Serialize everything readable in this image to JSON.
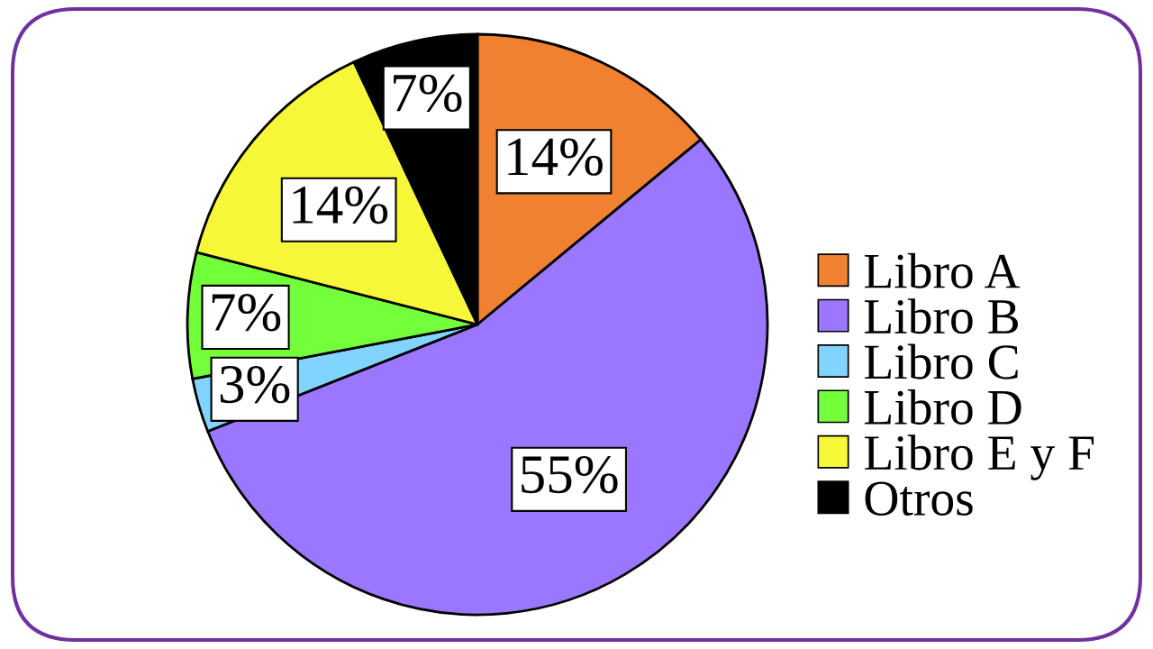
{
  "chart_data": {
    "type": "pie",
    "categories": [
      "Libro A",
      "Libro B",
      "Libro C",
      "Libro D",
      "Libro E y F",
      "Otros"
    ],
    "values": [
      14,
      55,
      3,
      7,
      14,
      7
    ],
    "colors": [
      "#ef8130",
      "#9b77ff",
      "#80d4ff",
      "#73ff3a",
      "#f7f73a",
      "#000000"
    ],
    "value_labels": [
      "14%",
      "55%",
      "3%",
      "7%",
      "14%",
      "7%"
    ],
    "legend": "right"
  }
}
